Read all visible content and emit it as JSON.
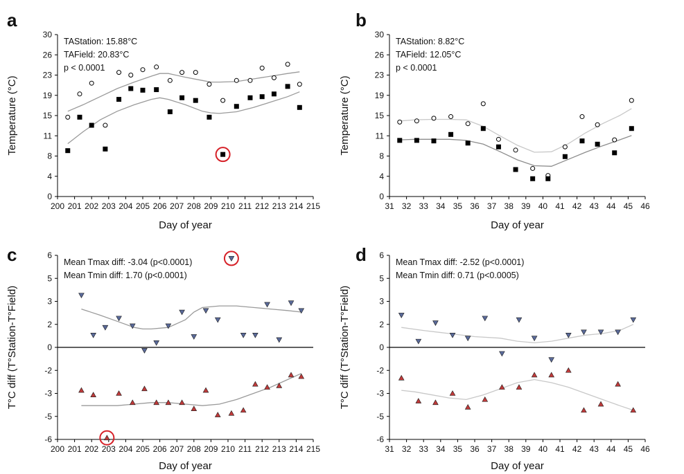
{
  "chart_data": [
    {
      "panel": "a",
      "type": "scatter",
      "xlabel": "Day of year",
      "ylabel": "Temperature (°C)",
      "xlim": [
        200,
        215
      ],
      "ylim": [
        0,
        30
      ],
      "xticks": [
        "200",
        "201",
        "202",
        "203",
        "204",
        "205",
        "206",
        "207",
        "208",
        "209",
        "210",
        "211",
        "212",
        "213",
        "214",
        "215"
      ],
      "yticks": [
        "0",
        "4",
        "8",
        "11",
        "15",
        "19",
        "23",
        "26",
        "30"
      ],
      "annotations": [
        "TAStation: 15.88°C",
        "TAField: 20.83°C",
        "p < 0.0001"
      ],
      "series": [
        {
          "marker": "open-circle",
          "color": "#000000",
          "x": [
            200.6,
            201.3,
            202.0,
            202.8,
            203.6,
            204.3,
            205.0,
            205.8,
            206.6,
            207.3,
            208.1,
            208.9,
            209.7,
            210.5,
            211.3,
            212.0,
            212.7,
            213.5,
            214.2
          ],
          "y": [
            14.7,
            19.0,
            21.0,
            13.2,
            23.0,
            22.5,
            23.5,
            24.0,
            21.5,
            23.0,
            23.0,
            20.8,
            17.8,
            21.5,
            21.5,
            23.8,
            22.0,
            24.5,
            20.8
          ]
        },
        {
          "marker": "filled-square",
          "color": "#000000",
          "x": [
            200.6,
            201.3,
            202.0,
            202.8,
            203.6,
            204.3,
            205.0,
            205.8,
            206.6,
            207.3,
            208.1,
            208.9,
            209.7,
            210.5,
            211.3,
            212.0,
            212.7,
            213.5,
            214.2
          ],
          "y": [
            8.5,
            14.7,
            13.2,
            8.8,
            18.0,
            20.0,
            19.7,
            19.8,
            15.7,
            18.3,
            17.8,
            14.7,
            7.8,
            16.7,
            18.3,
            18.5,
            19.0,
            20.4,
            16.5
          ]
        }
      ],
      "trend_lines": [
        {
          "color": "#9a9a9a",
          "x": [
            200.6,
            201.5,
            202.5,
            203.5,
            204.5,
            205.5,
            206.0,
            206.5,
            207.5,
            208.5,
            209.0,
            209.5,
            210.5,
            211.5,
            212.5,
            213.5,
            214.2
          ],
          "y": [
            15.8,
            17.0,
            18.5,
            20.0,
            21.2,
            22.3,
            22.8,
            22.8,
            22.1,
            21.5,
            21.2,
            21.2,
            21.3,
            21.8,
            22.3,
            22.8,
            23.1
          ]
        },
        {
          "color": "#9a9a9a",
          "x": [
            200.6,
            201.5,
            202.5,
            203.5,
            204.5,
            205.5,
            206.0,
            206.5,
            207.5,
            208.5,
            209.0,
            209.5,
            210.5,
            211.5,
            212.5,
            213.5,
            214.2
          ],
          "y": [
            9.8,
            12.0,
            14.2,
            15.8,
            17.0,
            18.0,
            18.3,
            18.0,
            17.0,
            15.8,
            15.5,
            15.4,
            15.7,
            16.5,
            17.5,
            18.5,
            19.4
          ]
        }
      ],
      "highlight": {
        "x": 209.7,
        "y": 7.8,
        "color": "#d62027"
      }
    },
    {
      "panel": "b",
      "type": "scatter",
      "xlabel": "Day of year",
      "ylabel": "Temperature (°C)",
      "xlim": [
        31,
        46
      ],
      "ylim": [
        0,
        30
      ],
      "xticks": [
        "31",
        "32",
        "33",
        "34",
        "35",
        "36",
        "37",
        "38",
        "39",
        "40",
        "41",
        "42",
        "43",
        "44",
        "45",
        "46"
      ],
      "yticks": [
        "0",
        "4",
        "8",
        "11",
        "15",
        "19",
        "23",
        "26",
        "30"
      ],
      "annotations": [
        "TAStation: 8.82°C",
        "TAField: 12.05°C",
        "p < 0.0001"
      ],
      "series": [
        {
          "marker": "open-circle",
          "color": "#000000",
          "x": [
            31.6,
            32.6,
            33.6,
            34.6,
            35.6,
            36.5,
            37.4,
            38.4,
            39.4,
            40.3,
            41.3,
            42.3,
            43.2,
            44.2,
            45.2
          ],
          "y": [
            13.8,
            14.0,
            14.5,
            14.8,
            13.5,
            17.2,
            10.6,
            8.6,
            5.2,
            3.9,
            9.2,
            14.8,
            13.3,
            10.5,
            17.8
          ]
        },
        {
          "marker": "filled-square",
          "color": "#000000",
          "x": [
            31.6,
            32.6,
            33.6,
            34.6,
            35.6,
            36.5,
            37.4,
            38.4,
            39.4,
            40.3,
            41.3,
            42.3,
            43.2,
            44.2,
            45.2
          ],
          "y": [
            10.4,
            10.4,
            10.3,
            11.5,
            9.9,
            12.6,
            9.2,
            5.0,
            3.3,
            3.3,
            7.4,
            10.3,
            9.7,
            8.1,
            12.6
          ]
        }
      ],
      "trend_lines": [
        {
          "color": "#c8c8c8",
          "x": [
            31.6,
            32.5,
            33.5,
            34.5,
            35.5,
            36.5,
            37.5,
            38.5,
            39.5,
            40.5,
            41.5,
            42.5,
            43.5,
            44.5,
            45.2
          ],
          "y": [
            14.0,
            14.2,
            14.3,
            14.3,
            14.2,
            13.0,
            11.2,
            9.5,
            8.2,
            8.3,
            9.8,
            11.8,
            13.5,
            15.0,
            16.3
          ]
        },
        {
          "color": "#8c8c8c",
          "x": [
            31.6,
            32.5,
            33.5,
            34.5,
            35.5,
            36.5,
            37.5,
            38.5,
            39.5,
            40.5,
            41.5,
            42.5,
            43.5,
            44.5,
            45.2
          ],
          "y": [
            10.5,
            10.6,
            10.6,
            10.6,
            10.4,
            9.7,
            8.3,
            6.8,
            5.7,
            5.6,
            6.9,
            8.2,
            9.4,
            10.5,
            11.3
          ]
        }
      ]
    },
    {
      "panel": "c",
      "type": "scatter",
      "xlabel": "Day of year",
      "ylabel": "T°C diff (T°Station-T°Field)",
      "xlim": [
        200,
        215
      ],
      "ylim": [
        -6,
        6
      ],
      "xticks": [
        "200",
        "201",
        "202",
        "203",
        "204",
        "205",
        "206",
        "207",
        "208",
        "209",
        "210",
        "211",
        "212",
        "213",
        "214",
        "215"
      ],
      "yticks": [
        "-6",
        "-5",
        "-3",
        "-2",
        "0",
        "2",
        "3",
        "5",
        "6"
      ],
      "annotations": [
        "Mean Tmax diff: -3.04 (p<0.0001)",
        "Mean Tmin diff: 1.70 (p<0.0001)"
      ],
      "series": [
        {
          "marker": "triangle-down",
          "color": "#5a6a9a",
          "x": [
            201.4,
            202.1,
            202.8,
            203.6,
            204.4,
            205.1,
            205.8,
            206.5,
            207.3,
            208.0,
            208.7,
            209.4,
            210.2,
            210.9,
            211.6,
            212.3,
            213.0,
            213.7,
            214.3
          ],
          "y": [
            3.4,
            0.8,
            1.3,
            1.9,
            1.4,
            -0.2,
            0.3,
            1.4,
            2.3,
            0.7,
            2.4,
            1.8,
            5.8,
            0.8,
            0.8,
            2.8,
            0.5,
            2.9,
            2.4
          ]
        },
        {
          "marker": "triangle-up",
          "color": "#c03a3a",
          "x": [
            201.4,
            202.1,
            202.9,
            203.6,
            204.4,
            205.1,
            205.8,
            206.5,
            207.3,
            208.0,
            208.7,
            209.4,
            210.2,
            210.9,
            211.6,
            212.3,
            213.0,
            213.7,
            214.3
          ],
          "y": [
            -2.8,
            -3.1,
            -5.9,
            -3.0,
            -3.6,
            -2.7,
            -3.6,
            -3.6,
            -3.6,
            -4.0,
            -2.8,
            -4.4,
            -4.3,
            -4.1,
            -2.4,
            -2.6,
            -2.5,
            -1.8,
            -1.9
          ]
        }
      ],
      "trend_lines": [
        {
          "color": "#9a9a9a",
          "x": [
            201.4,
            202.5,
            203.5,
            204.5,
            205.0,
            205.5,
            206.5,
            207.5,
            208.0,
            208.5,
            209.5,
            210.5,
            211.5,
            212.5,
            213.5,
            214.3
          ],
          "y": [
            2.5,
            2.1,
            1.7,
            1.3,
            1.2,
            1.2,
            1.3,
            1.8,
            2.3,
            2.6,
            2.7,
            2.7,
            2.6,
            2.5,
            2.4,
            2.3
          ]
        },
        {
          "color": "#9a9a9a",
          "x": [
            201.4,
            202.5,
            203.5,
            204.5,
            205.5,
            206.5,
            207.5,
            208.5,
            209.5,
            210.5,
            211.5,
            212.5,
            213.5,
            214.3
          ],
          "y": [
            -3.8,
            -3.8,
            -3.8,
            -3.7,
            -3.6,
            -3.6,
            -3.7,
            -3.8,
            -3.7,
            -3.4,
            -3.0,
            -2.6,
            -2.1,
            -1.7
          ]
        }
      ],
      "highlights": [
        {
          "x": 210.2,
          "y": 5.8,
          "color": "#d62027"
        },
        {
          "x": 202.9,
          "y": -5.9,
          "color": "#d62027"
        }
      ]
    },
    {
      "panel": "d",
      "type": "scatter",
      "xlabel": "Day of year",
      "ylabel": "T°C diff (T°Station-T°Field)",
      "xlim": [
        31,
        46
      ],
      "ylim": [
        -6,
        6
      ],
      "xticks": [
        "31",
        "32",
        "33",
        "34",
        "35",
        "36",
        "37",
        "38",
        "39",
        "40",
        "41",
        "42",
        "43",
        "44",
        "45",
        "46"
      ],
      "yticks": [
        "-6",
        "-5",
        "-3",
        "-2",
        "0",
        "2",
        "3",
        "5",
        "6"
      ],
      "annotations": [
        "Mean Tmax diff: -2.52 (p<0.0001)",
        "Mean Tmin diff: 0.71 (p<0.0005)"
      ],
      "series": [
        {
          "marker": "triangle-down",
          "color": "#5a6a9a",
          "x": [
            31.7,
            32.7,
            33.7,
            34.7,
            35.6,
            36.6,
            37.6,
            38.6,
            39.5,
            40.5,
            41.5,
            42.4,
            43.4,
            44.4,
            45.3
          ],
          "y": [
            2.1,
            0.4,
            1.6,
            0.8,
            0.6,
            1.9,
            -0.4,
            1.8,
            0.6,
            -0.8,
            0.8,
            1.0,
            1.0,
            1.0,
            1.8
          ]
        },
        {
          "marker": "triangle-up",
          "color": "#c03a3a",
          "x": [
            31.7,
            32.7,
            33.7,
            34.7,
            35.6,
            36.6,
            37.6,
            38.6,
            39.5,
            40.5,
            41.5,
            42.4,
            43.4,
            44.4,
            45.3
          ],
          "y": [
            -2.0,
            -3.5,
            -3.6,
            -3.0,
            -3.9,
            -3.4,
            -2.6,
            -2.6,
            -1.8,
            -1.8,
            -1.5,
            -4.1,
            -3.7,
            -2.4,
            -4.1
          ]
        }
      ],
      "trend_lines": [
        {
          "color": "#c8c8c8",
          "x": [
            31.7,
            33.0,
            34.5,
            36.0,
            37.5,
            38.5,
            39.5,
            40.5,
            41.5,
            42.5,
            43.5,
            44.5,
            45.3
          ],
          "y": [
            1.3,
            1.1,
            0.9,
            0.7,
            0.6,
            0.4,
            0.3,
            0.4,
            0.6,
            0.8,
            0.9,
            1.1,
            1.5
          ]
        },
        {
          "color": "#c8c8c8",
          "x": [
            31.7,
            32.5,
            33.5,
            34.5,
            35.5,
            36.5,
            37.5,
            38.5,
            39.5,
            40.5,
            41.5,
            42.5,
            43.5,
            44.5,
            45.3
          ],
          "y": [
            -2.8,
            -2.9,
            -3.1,
            -3.3,
            -3.4,
            -3.1,
            -2.7,
            -2.3,
            -2.1,
            -2.3,
            -2.6,
            -3.0,
            -3.4,
            -3.8,
            -4.1
          ]
        }
      ]
    }
  ]
}
